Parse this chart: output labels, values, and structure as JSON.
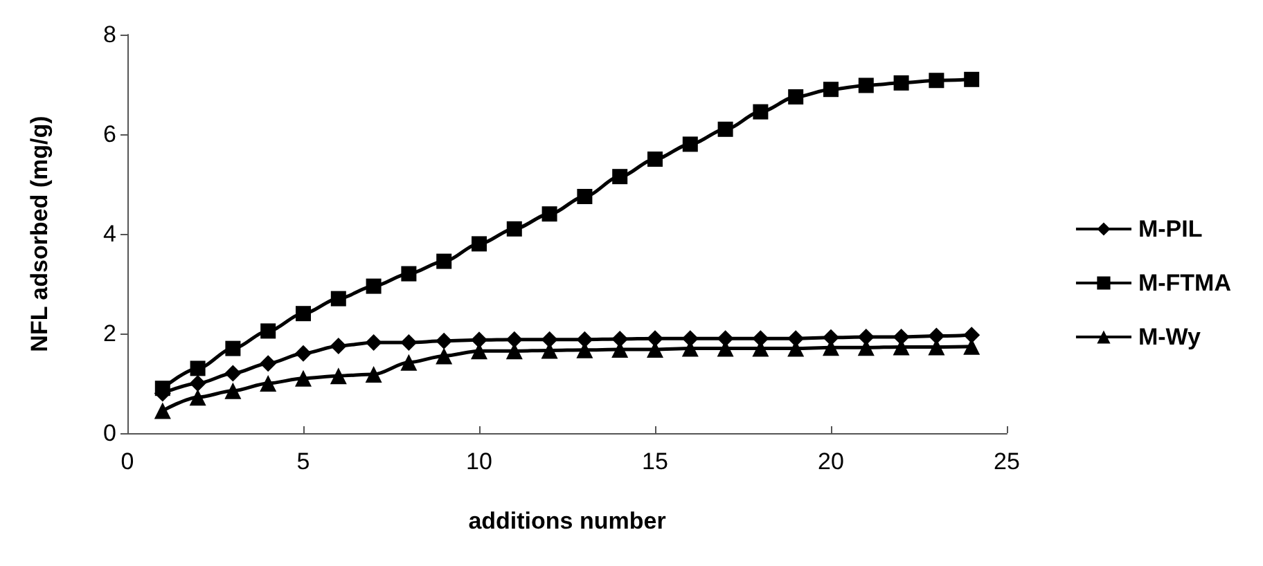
{
  "chart_data": {
    "type": "line",
    "xlabel": "additions number",
    "ylabel": "NFL adsorbed (mg/g)",
    "x": [
      1,
      2,
      3,
      4,
      5,
      6,
      7,
      8,
      9,
      10,
      11,
      12,
      13,
      14,
      15,
      16,
      17,
      18,
      19,
      20,
      21,
      22,
      23,
      24
    ],
    "series": [
      {
        "name": "M-PIL",
        "color": "#000000",
        "marker": "diamond",
        "values": [
          0.8,
          1.0,
          1.2,
          1.4,
          1.6,
          1.75,
          1.82,
          1.82,
          1.85,
          1.87,
          1.88,
          1.88,
          1.88,
          1.89,
          1.9,
          1.9,
          1.9,
          1.9,
          1.9,
          1.92,
          1.93,
          1.93,
          1.95,
          1.97
        ]
      },
      {
        "name": "M-FTMA",
        "color": "#000000",
        "marker": "square",
        "values": [
          0.9,
          1.3,
          1.7,
          2.05,
          2.4,
          2.7,
          2.95,
          3.2,
          3.45,
          3.8,
          4.1,
          4.4,
          4.75,
          5.15,
          5.5,
          5.8,
          6.1,
          6.45,
          6.75,
          6.9,
          6.98,
          7.03,
          7.08,
          7.1
        ]
      },
      {
        "name": "M-Wy",
        "color": "#000000",
        "marker": "triangle",
        "values": [
          0.45,
          0.72,
          0.85,
          1.0,
          1.1,
          1.15,
          1.18,
          1.42,
          1.55,
          1.65,
          1.65,
          1.66,
          1.67,
          1.68,
          1.68,
          1.7,
          1.7,
          1.7,
          1.7,
          1.72,
          1.72,
          1.73,
          1.73,
          1.74
        ]
      }
    ],
    "xlim": [
      0,
      25
    ],
    "xticks": [
      0,
      5,
      10,
      15,
      20,
      25
    ],
    "ylim": [
      0,
      8
    ],
    "yticks": [
      0,
      2,
      4,
      6,
      8
    ],
    "grid": false,
    "legend": "right",
    "line_style": "solid"
  }
}
